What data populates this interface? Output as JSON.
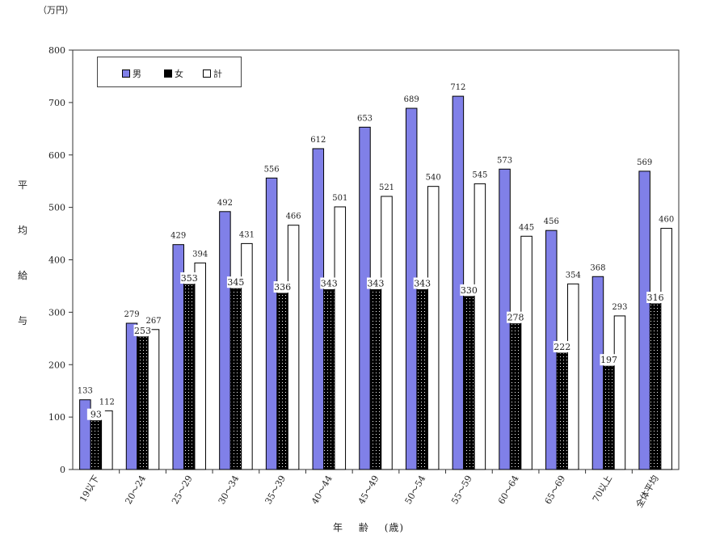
{
  "chart_data": {
    "type": "bar",
    "unit_label": "（万円）",
    "ylabel": [
      "平",
      "均",
      "給",
      "与"
    ],
    "xlabel": [
      "年",
      "齢",
      "(歳)"
    ],
    "categories": [
      "19以下",
      "20～24",
      "25～29",
      "30～34",
      "35～39",
      "40～44",
      "45～49",
      "50～54",
      "55～59",
      "60～64",
      "65～69",
      "70以上",
      "全体平均"
    ],
    "series": [
      {
        "name": "男",
        "color": "#8080e8",
        "values": [
          133,
          279,
          429,
          492,
          556,
          612,
          653,
          689,
          712,
          573,
          456,
          368,
          569
        ]
      },
      {
        "name": "女",
        "color": "#000000",
        "values": [
          93,
          253,
          353,
          345,
          336,
          343,
          343,
          343,
          330,
          278,
          222,
          197,
          316
        ]
      },
      {
        "name": "計",
        "color": "#ffffff",
        "values": [
          112,
          267,
          394,
          431,
          466,
          501,
          521,
          540,
          545,
          445,
          354,
          293,
          460
        ]
      }
    ],
    "ylim": [
      0,
      800
    ],
    "yticks": [
      0,
      100,
      200,
      300,
      400,
      500,
      600,
      700,
      800
    ],
    "legend_position": "top-left",
    "grid": false
  }
}
